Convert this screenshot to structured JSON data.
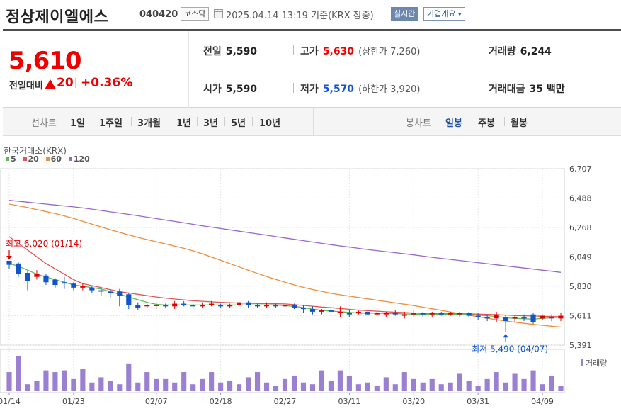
{
  "header": {
    "company": "정상제이엘에스",
    "code": "040420",
    "market": "코스닥",
    "datetime": "2025.04.14 13:19  기준(KRX 장중)",
    "realtime_label": "실시간",
    "overview_label": "기업개요",
    "overview_arrow": "▾",
    "calendar_icon": "calendar-icon"
  },
  "quote": {
    "price": "5,610",
    "change_label": "전일대비",
    "change_icon": "up-triangle-icon",
    "change_value": "20",
    "change_sep": "|",
    "change_percent": "+0.36%",
    "prev_close_label": "전일",
    "prev_close": "5,590",
    "open_label": "시가",
    "open": "5,590",
    "high_label": "고가",
    "high": "5,630",
    "upper_limit": "(상한가 7,260)",
    "low_label": "저가",
    "low": "5,570",
    "lower_limit": "(하한가 3,920)",
    "volume_label": "거래량",
    "volume": "6,244",
    "amount_label": "거래대금",
    "amount": "35 백만"
  },
  "period_tabs": {
    "line_title": "선차트",
    "line_items": [
      "1일",
      "1주일",
      "3개월",
      "1년",
      "3년",
      "5년",
      "10년"
    ],
    "candle_title": "봉차트",
    "candle_items": [
      "일봉",
      "주봉",
      "월봉"
    ],
    "active": "일봉"
  },
  "colors": {
    "up": "#e00000",
    "down": "#1155cc",
    "ma5": "#5cb85c",
    "ma20": "#e05555",
    "ma60": "#f08c3c",
    "ma120": "#9966cc",
    "volume": "#9b7fd0"
  },
  "chart_data": {
    "type": "candlestick",
    "source": "한국거래소(KRX)",
    "legend": [
      "5",
      "20",
      "60",
      "120"
    ],
    "ylim": [
      5391,
      6707
    ],
    "y_ticks": [
      6707,
      6488,
      6268,
      6049,
      5830,
      5611,
      5391
    ],
    "y_tick_labels": [
      "6,707",
      "6,488",
      "6,268",
      "6,049",
      "5,830",
      "5,611",
      "5,391"
    ],
    "x_ticks": [
      {
        "label": "01/14",
        "index": 0
      },
      {
        "label": "01/23",
        "index": 7
      },
      {
        "label": "02/07",
        "index": 16
      },
      {
        "label": "02/18",
        "index": 23
      },
      {
        "label": "02/27",
        "index": 30
      },
      {
        "label": "03/11",
        "index": 37
      },
      {
        "label": "03/20",
        "index": 44
      },
      {
        "label": "03/31",
        "index": 51
      },
      {
        "label": "04/09",
        "index": 58
      }
    ],
    "high_annotation": "최고 6,020 (01/14)",
    "low_annotation": "최저 5,490 (04/07)",
    "volume_label": "거래량",
    "candles": [
      {
        "o": 6020,
        "h": 6020,
        "c": 5990,
        "l": 5960
      },
      {
        "o": 6000,
        "h": 6010,
        "c": 5920,
        "l": 5900
      },
      {
        "o": 5930,
        "h": 5940,
        "c": 5870,
        "l": 5800
      },
      {
        "o": 5900,
        "h": 5950,
        "c": 5920,
        "l": 5880
      },
      {
        "o": 5910,
        "h": 5920,
        "c": 5860,
        "l": 5840
      },
      {
        "o": 5880,
        "h": 5890,
        "c": 5840,
        "l": 5820
      },
      {
        "o": 5860,
        "h": 5900,
        "c": 5850,
        "l": 5810
      },
      {
        "o": 5850,
        "h": 5860,
        "c": 5820,
        "l": 5800
      },
      {
        "o": 5820,
        "h": 5850,
        "c": 5830,
        "l": 5800
      },
      {
        "o": 5820,
        "h": 5830,
        "c": 5800,
        "l": 5780
      },
      {
        "o": 5800,
        "h": 5820,
        "c": 5790,
        "l": 5760
      },
      {
        "o": 5790,
        "h": 5810,
        "c": 5780,
        "l": 5740
      },
      {
        "o": 5790,
        "h": 5810,
        "c": 5760,
        "l": 5680
      },
      {
        "o": 5770,
        "h": 5780,
        "c": 5690,
        "l": 5660
      },
      {
        "o": 5690,
        "h": 5710,
        "c": 5670,
        "l": 5650
      },
      {
        "o": 5680,
        "h": 5700,
        "c": 5690,
        "l": 5670
      },
      {
        "o": 5690,
        "h": 5710,
        "c": 5690,
        "l": 5660
      },
      {
        "o": 5690,
        "h": 5700,
        "c": 5680,
        "l": 5670
      },
      {
        "o": 5680,
        "h": 5720,
        "c": 5700,
        "l": 5660
      },
      {
        "o": 5700,
        "h": 5720,
        "c": 5690,
        "l": 5680
      },
      {
        "o": 5690,
        "h": 5700,
        "c": 5680,
        "l": 5660
      },
      {
        "o": 5680,
        "h": 5710,
        "c": 5690,
        "l": 5670
      },
      {
        "o": 5690,
        "h": 5720,
        "c": 5700,
        "l": 5680
      },
      {
        "o": 5690,
        "h": 5700,
        "c": 5680,
        "l": 5670
      },
      {
        "o": 5680,
        "h": 5700,
        "c": 5690,
        "l": 5670
      },
      {
        "o": 5690,
        "h": 5720,
        "c": 5710,
        "l": 5680
      },
      {
        "o": 5710,
        "h": 5720,
        "c": 5690,
        "l": 5670
      },
      {
        "o": 5690,
        "h": 5700,
        "c": 5680,
        "l": 5670
      },
      {
        "o": 5680,
        "h": 5710,
        "c": 5690,
        "l": 5670
      },
      {
        "o": 5690,
        "h": 5700,
        "c": 5680,
        "l": 5670
      },
      {
        "o": 5680,
        "h": 5700,
        "c": 5690,
        "l": 5670
      },
      {
        "o": 5690,
        "h": 5700,
        "c": 5670,
        "l": 5660
      },
      {
        "o": 5670,
        "h": 5690,
        "c": 5660,
        "l": 5630
      },
      {
        "o": 5660,
        "h": 5680,
        "c": 5640,
        "l": 5620
      },
      {
        "o": 5640,
        "h": 5660,
        "c": 5650,
        "l": 5620
      },
      {
        "o": 5650,
        "h": 5670,
        "c": 5640,
        "l": 5620
      },
      {
        "o": 5630,
        "h": 5680,
        "c": 5640,
        "l": 5600
      },
      {
        "o": 5630,
        "h": 5650,
        "c": 5620,
        "l": 5600
      },
      {
        "o": 5630,
        "h": 5650,
        "c": 5640,
        "l": 5620
      },
      {
        "o": 5640,
        "h": 5650,
        "c": 5620,
        "l": 5610
      },
      {
        "o": 5620,
        "h": 5640,
        "c": 5630,
        "l": 5610
      },
      {
        "o": 5620,
        "h": 5640,
        "c": 5630,
        "l": 5600
      },
      {
        "o": 5630,
        "h": 5650,
        "c": 5620,
        "l": 5610
      },
      {
        "o": 5610,
        "h": 5640,
        "c": 5620,
        "l": 5590
      },
      {
        "o": 5620,
        "h": 5650,
        "c": 5630,
        "l": 5600
      },
      {
        "o": 5630,
        "h": 5640,
        "c": 5620,
        "l": 5600
      },
      {
        "o": 5620,
        "h": 5640,
        "c": 5630,
        "l": 5600
      },
      {
        "o": 5630,
        "h": 5640,
        "c": 5620,
        "l": 5610
      },
      {
        "o": 5620,
        "h": 5640,
        "c": 5630,
        "l": 5610
      },
      {
        "o": 5620,
        "h": 5640,
        "c": 5630,
        "l": 5600
      },
      {
        "o": 5630,
        "h": 5640,
        "c": 5610,
        "l": 5600
      },
      {
        "o": 5610,
        "h": 5630,
        "c": 5600,
        "l": 5580
      },
      {
        "o": 5600,
        "h": 5620,
        "c": 5590,
        "l": 5570
      },
      {
        "o": 5590,
        "h": 5640,
        "c": 5620,
        "l": 5560
      },
      {
        "o": 5600,
        "h": 5620,
        "c": 5570,
        "l": 5490
      },
      {
        "o": 5590,
        "h": 5610,
        "c": 5600,
        "l": 5560
      },
      {
        "o": 5600,
        "h": 5620,
        "c": 5590,
        "l": 5570
      },
      {
        "o": 5620,
        "h": 5630,
        "c": 5560,
        "l": 5550
      },
      {
        "o": 5590,
        "h": 5620,
        "c": 5610,
        "l": 5580
      },
      {
        "o": 5600,
        "h": 5620,
        "c": 5590,
        "l": 5570
      },
      {
        "o": 5590,
        "h": 5630,
        "c": 5610,
        "l": 5570
      }
    ],
    "ma5": [
      6000,
      5980,
      5950,
      5920,
      5900,
      5880,
      5860,
      5840,
      5830,
      5820,
      5810,
      5790,
      5770,
      5750,
      5730,
      5710,
      5695,
      5690,
      5690,
      5690,
      5690,
      5690,
      5690,
      5690,
      5690,
      5690,
      5690,
      5690,
      5690,
      5690,
      5685,
      5680,
      5670,
      5660,
      5650,
      5645,
      5640,
      5635,
      5630,
      5630,
      5630,
      5628,
      5626,
      5624,
      5622,
      5622,
      5622,
      5622,
      5622,
      5622,
      5620,
      5615,
      5610,
      5605,
      5595,
      5590,
      5588,
      5585,
      5590,
      5595,
      5600
    ],
    "ma20": [
      6200,
      6150,
      6100,
      6050,
      6000,
      5960,
      5920,
      5880,
      5850,
      5835,
      5820,
      5805,
      5790,
      5780,
      5770,
      5760,
      5750,
      5742,
      5735,
      5728,
      5722,
      5718,
      5714,
      5710,
      5707,
      5705,
      5703,
      5701,
      5700,
      5699,
      5698,
      5693,
      5687,
      5681,
      5675,
      5670,
      5664,
      5658,
      5652,
      5648,
      5644,
      5640,
      5637,
      5634,
      5631,
      5629,
      5628,
      5627,
      5626,
      5625,
      5624,
      5622,
      5620,
      5618,
      5615,
      5612,
      5610,
      5608,
      5606,
      5604,
      5603
    ],
    "ma60": [
      6443,
      6430,
      6417,
      6402,
      6387,
      6372,
      6355,
      6336,
      6315,
      6293,
      6272,
      6252,
      6232,
      6213,
      6195,
      6178,
      6162,
      6146,
      6130,
      6113,
      6094,
      6072,
      6048,
      6024,
      5999,
      5974,
      5950,
      5926,
      5903,
      5881,
      5860,
      5840,
      5822,
      5806,
      5792,
      5778,
      5766,
      5756,
      5746,
      5736,
      5726,
      5716,
      5706,
      5696,
      5686,
      5674,
      5662,
      5650,
      5638,
      5626,
      5614,
      5603,
      5592,
      5581,
      5571,
      5562,
      5554,
      5546,
      5539,
      5532,
      5526
    ],
    "ma120": [
      6471,
      6464,
      6457,
      6450,
      6443,
      6436,
      6429,
      6422,
      6414,
      6405,
      6395,
      6385,
      6376,
      6366,
      6356,
      6345,
      6335,
      6324,
      6314,
      6303,
      6292,
      6281,
      6271,
      6261,
      6251,
      6241,
      6231,
      6221,
      6211,
      6200,
      6190,
      6180,
      6170,
      6160,
      6150,
      6140,
      6131,
      6122,
      6113,
      6104,
      6096,
      6088,
      6080,
      6072,
      6064,
      6055,
      6046,
      6038,
      6030,
      6022,
      6014,
      6006,
      5998,
      5990,
      5982,
      5974,
      5966,
      5958,
      5950,
      5942,
      5934
    ],
    "volumes": [
      0.55,
      1.0,
      0.2,
      0.3,
      0.6,
      0.55,
      0.6,
      0.35,
      0.65,
      0.25,
      0.4,
      0.3,
      0.2,
      0.8,
      0.25,
      0.55,
      0.35,
      0.35,
      0.25,
      0.55,
      0.2,
      0.35,
      0.55,
      0.25,
      0.3,
      0.2,
      0.4,
      0.55,
      0.25,
      0.15,
      0.35,
      0.45,
      0.25,
      0.2,
      0.6,
      0.3,
      0.6,
      0.45,
      0.2,
      0.25,
      0.15,
      0.4,
      0.2,
      0.55,
      0.35,
      0.25,
      0.35,
      0.2,
      0.25,
      0.5,
      0.3,
      0.15,
      0.35,
      0.55,
      0.25,
      0.5,
      0.35,
      0.6,
      0.2,
      0.45,
      0.15
    ]
  }
}
